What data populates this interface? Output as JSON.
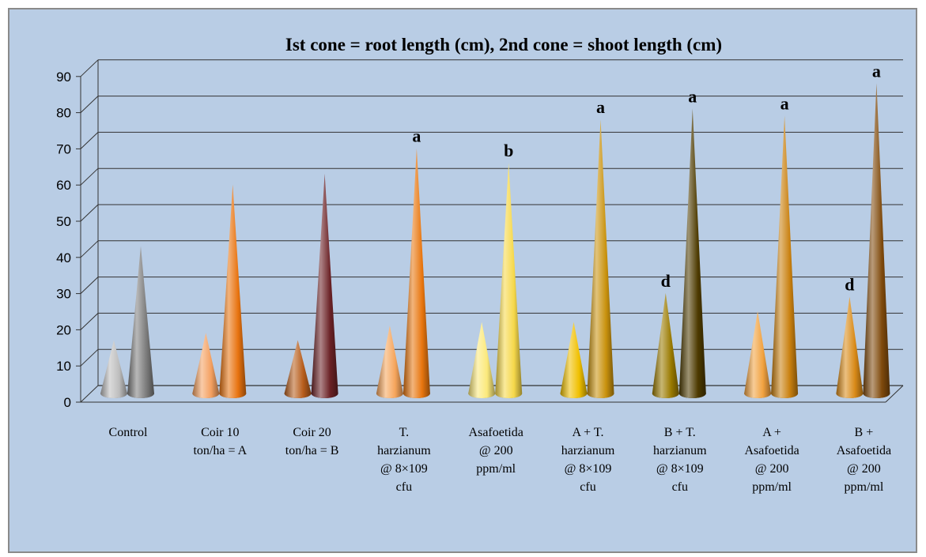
{
  "chart_data": {
    "type": "bar",
    "style": "3d-cone",
    "title": "Ist cone = root length (cm), 2nd cone = shoot length (cm)",
    "xlabel": "",
    "ylabel": "",
    "ylim": [
      0,
      90
    ],
    "yticks": [
      "0",
      "10",
      "20",
      "30",
      "40",
      "50",
      "60",
      "70",
      "80",
      "90"
    ],
    "grid": true,
    "legend": "none",
    "categories": [
      [
        "Control"
      ],
      [
        "Coir 10",
        "ton/ha = A"
      ],
      [
        "Coir 20",
        "ton/ha = B"
      ],
      [
        "T.",
        "harzianum",
        "@ 8×109",
        "cfu"
      ],
      [
        "Asafoetida",
        "@ 200",
        "ppm/ml"
      ],
      [
        "A + T.",
        "harzianum",
        "@ 8×109",
        "cfu"
      ],
      [
        "B + T.",
        "harzianum",
        "@ 8×109",
        "cfu"
      ],
      [
        "A +",
        "Asafoetida",
        "@ 200",
        "ppm/ml"
      ],
      [
        "B +",
        "Asafoetida",
        "@ 200",
        "ppm/ml"
      ]
    ],
    "series": [
      {
        "values": [
          13,
          15,
          13,
          17,
          18,
          18,
          26,
          21,
          25
        ],
        "colors": [
          "#bdbdbd",
          "#f4a060",
          "#b75d1c",
          "#f6a55c",
          "#fbe97b",
          "#f0c000",
          "#9a7a00",
          "#f1a240",
          "#d98a18"
        ],
        "labels": [
          "",
          "",
          "",
          "",
          "",
          "",
          "d",
          "",
          "d"
        ]
      },
      {
        "values": [
          39,
          56,
          59,
          66,
          62,
          74,
          77,
          75,
          84
        ],
        "colors": [
          "#7d7d7d",
          "#e8730f",
          "#6b2226",
          "#e8760f",
          "#f6d84a",
          "#c9920e",
          "#4d3a00",
          "#c9800f",
          "#7f4a0c"
        ],
        "labels": [
          "",
          "",
          "",
          "a",
          "b",
          "a",
          "a",
          "a",
          "a"
        ]
      }
    ]
  }
}
